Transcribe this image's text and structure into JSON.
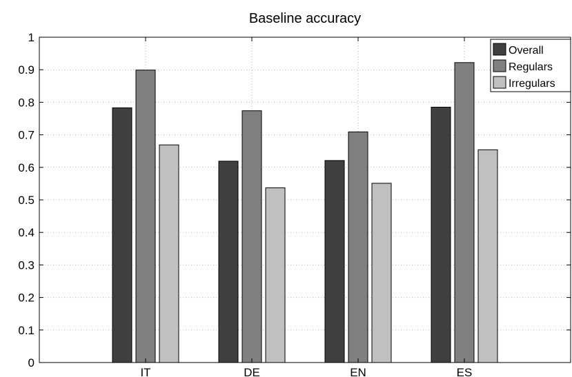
{
  "chart_data": {
    "type": "bar",
    "title": "Baseline accuracy",
    "xlabel": "",
    "ylabel": "",
    "categories": [
      "IT",
      "DE",
      "EN",
      "ES"
    ],
    "series": [
      {
        "name": "Overall",
        "color": "#404040",
        "values": [
          0.783,
          0.619,
          0.621,
          0.785
        ]
      },
      {
        "name": "Regulars",
        "color": "#808080",
        "values": [
          0.899,
          0.774,
          0.709,
          0.922
        ]
      },
      {
        "name": "Irregulars",
        "color": "#c0c0c0",
        "values": [
          0.669,
          0.537,
          0.551,
          0.654
        ]
      }
    ],
    "ylim": [
      0,
      1
    ],
    "yticks": [
      "0",
      "0.1",
      "0.2",
      "0.3",
      "0.4",
      "0.5",
      "0.6",
      "0.7",
      "0.8",
      "0.9",
      "1"
    ],
    "grid": true,
    "legend_position": "top-right"
  }
}
